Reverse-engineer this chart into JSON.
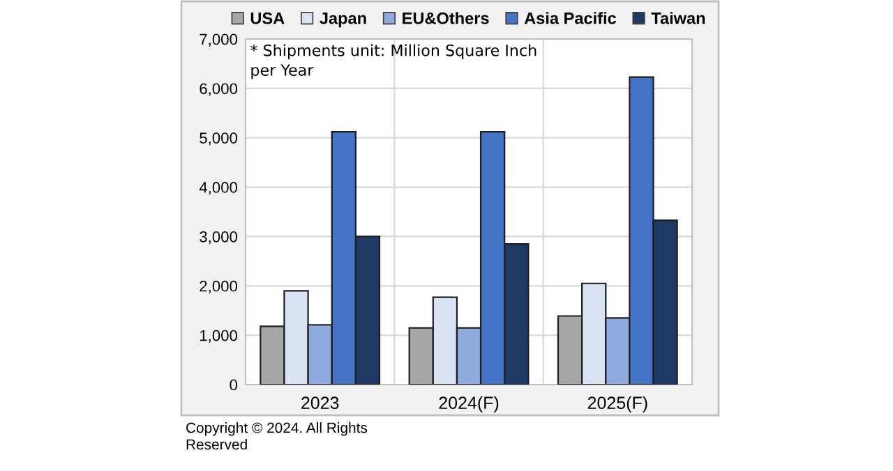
{
  "chart_data": {
    "type": "bar",
    "categories": [
      "2023",
      "2024(F)",
      "2025(F)"
    ],
    "series": [
      {
        "name": "USA",
        "color": "#a6a6a6",
        "values": [
          1180,
          1150,
          1390
        ]
      },
      {
        "name": "Japan",
        "color": "#dae3f3",
        "values": [
          1900,
          1770,
          2050
        ]
      },
      {
        "name": "EU&Others",
        "color": "#8faadc",
        "values": [
          1210,
          1150,
          1350
        ]
      },
      {
        "name": "Asia Pacific",
        "color": "#4472c4",
        "values": [
          5120,
          5120,
          6230
        ]
      },
      {
        "name": "Taiwan",
        "color": "#203864",
        "values": [
          3000,
          2850,
          3330
        ]
      }
    ],
    "ylim": [
      0,
      7000
    ],
    "yticks": [
      {
        "value": 0,
        "label": "0"
      },
      {
        "value": 1000,
        "label": "1,000"
      },
      {
        "value": 2000,
        "label": "2,000"
      },
      {
        "value": 3000,
        "label": "3,000"
      },
      {
        "value": 4000,
        "label": "4,000"
      },
      {
        "value": 5000,
        "label": "5,000"
      },
      {
        "value": 6000,
        "label": "6,000"
      },
      {
        "value": 7000,
        "label": "7,000"
      }
    ],
    "grid": true,
    "legend": "top",
    "annotations": [
      {
        "text": "* Shipments unit: Million Square Inch\nper Year"
      },
      {
        "text": "Copyright © 2024. All Rights\nReserved"
      }
    ]
  }
}
